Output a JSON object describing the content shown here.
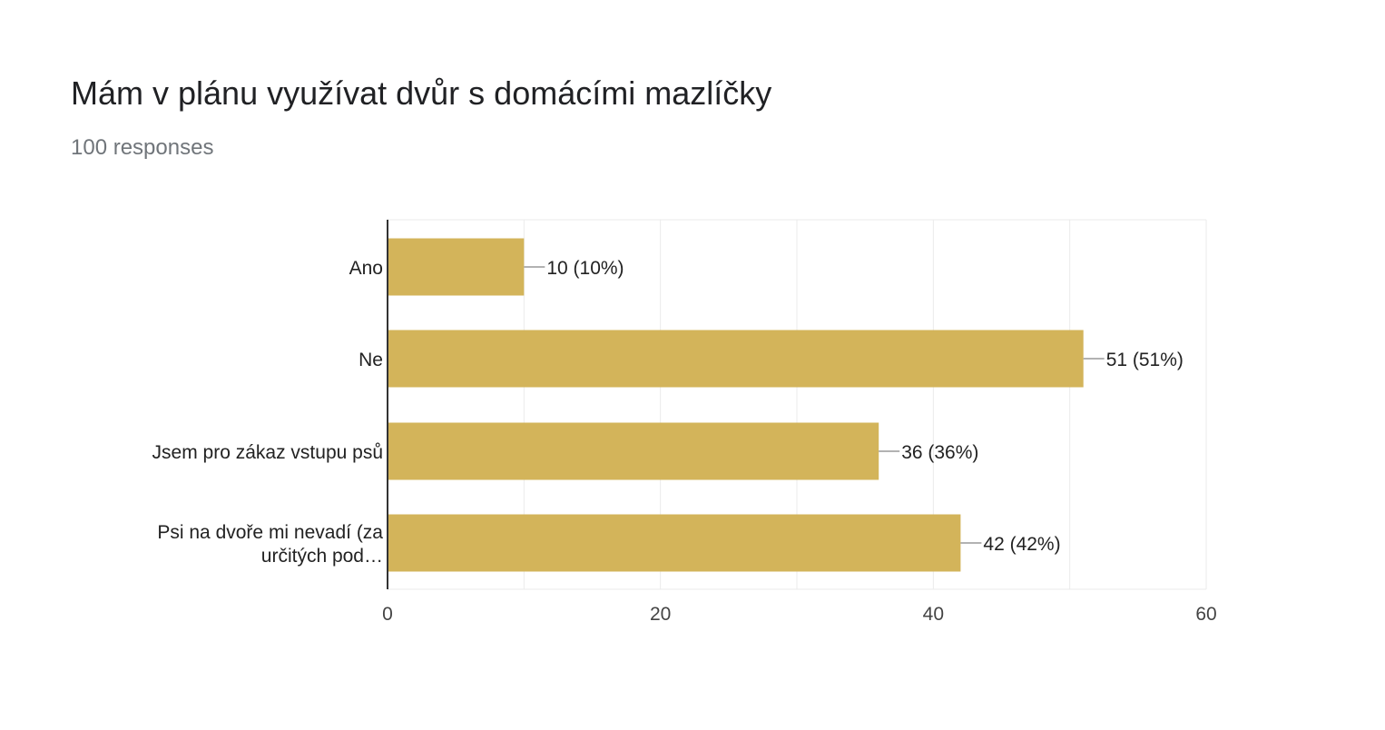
{
  "header": {
    "title": "Mám v plánu využívat dvůr s domácími mazlíčky",
    "subtitle": "100 responses"
  },
  "colors": {
    "bar": "#d3b45a",
    "grid": "#ebebeb",
    "axis": "#333333",
    "leader": "#999999"
  },
  "chart_data": {
    "type": "bar",
    "orientation": "horizontal",
    "title": "Mám v plánu využívat dvůr s domácími mazlíčky",
    "subtitle": "100 responses",
    "categories": [
      [
        "Ano"
      ],
      [
        "Ne"
      ],
      [
        "Jsem pro zákaz vstupu psů"
      ],
      [
        "Psi na dvoře mi nevadí (za",
        "určitých pod…"
      ]
    ],
    "values": [
      10,
      51,
      36,
      42
    ],
    "data_labels": [
      "10 (10%)",
      "51 (51%)",
      "36 (36%)",
      "42 (42%)"
    ],
    "xlim": [
      0,
      60
    ],
    "xticks": [
      0,
      20,
      40,
      60
    ],
    "xtick_labels": [
      "0",
      "20",
      "40",
      "60"
    ],
    "grid": true,
    "legend": "none"
  }
}
